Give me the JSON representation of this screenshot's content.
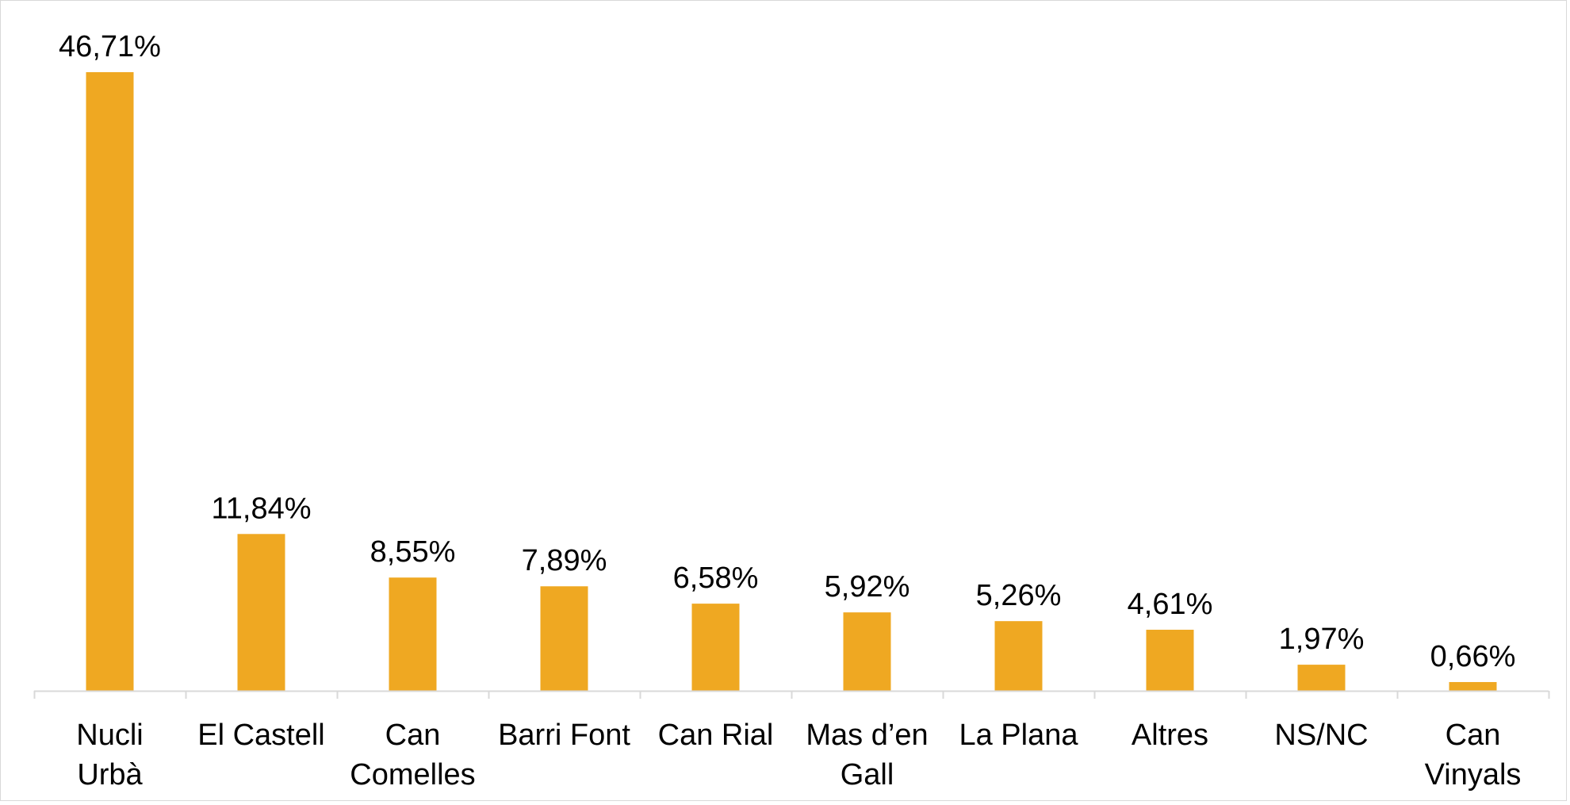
{
  "chart_data": {
    "type": "bar",
    "categories": [
      [
        "Nucli",
        "Urbà"
      ],
      [
        "El Castell"
      ],
      [
        "Can",
        "Comelles"
      ],
      [
        "Barri Font"
      ],
      [
        "Can Rial"
      ],
      [
        "Mas d’en",
        "Gall"
      ],
      [
        "La Plana"
      ],
      [
        "Altres"
      ],
      [
        "NS/NC"
      ],
      [
        "Can",
        "Vinyals"
      ]
    ],
    "values": [
      46.71,
      11.84,
      8.55,
      7.89,
      6.58,
      5.92,
      5.26,
      4.61,
      1.97,
      0.66
    ],
    "value_labels": [
      "46,71%",
      "11,84%",
      "8,55%",
      "7,89%",
      "6,58%",
      "5,92%",
      "5,26%",
      "4,61%",
      "1,97%",
      "0,66%"
    ],
    "title": "",
    "xlabel": "",
    "ylabel": "",
    "ylim": [
      0,
      50
    ],
    "grid": false,
    "legend": "none",
    "colors": {
      "bar": "#EFA822",
      "axis": "#d9d9d9",
      "text": "#000000"
    }
  }
}
